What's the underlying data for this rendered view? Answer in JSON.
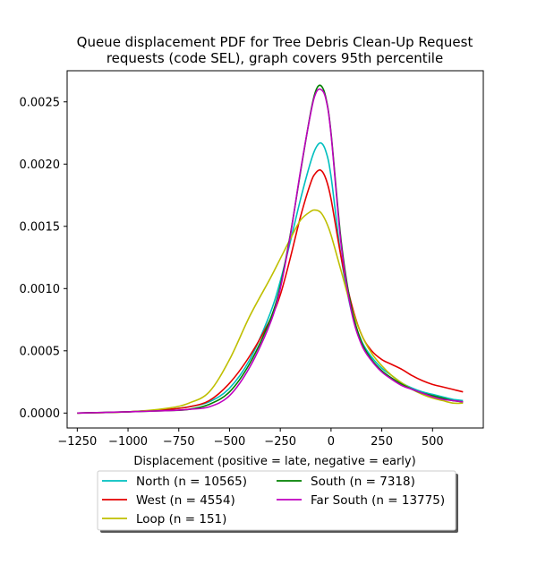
{
  "chart_data": {
    "type": "line",
    "title": "Queue displacement PDF for Tree Debris Clean-Up Request requests (code SEL), graph covers 95th percentile",
    "title_lines": [
      "Queue displacement PDF for Tree Debris Clean-Up Request",
      "requests (code SEL), graph covers 95th percentile"
    ],
    "xlabel": "Displacement (positive = late, negative = early)",
    "ylabel": "",
    "xlim": [
      -1300,
      750
    ],
    "ylim": [
      -0.00012,
      0.00275
    ],
    "xticks": [
      -1250,
      -1000,
      -750,
      -500,
      -250,
      0,
      250,
      500
    ],
    "xtick_labels": [
      "−1250",
      "−1000",
      "−750",
      "−500",
      "−250",
      "0",
      "250",
      "500"
    ],
    "yticks": [
      0.0,
      0.0005,
      0.001,
      0.0015,
      0.002,
      0.0025
    ],
    "ytick_labels": [
      "0.0000",
      "0.0005",
      "0.0010",
      "0.0015",
      "0.0020",
      "0.0025"
    ],
    "grid": false,
    "legend_position": "bottom-center, below axes, 2 columns",
    "series": [
      {
        "name": "North (n = 10565)",
        "color": "#00bfbf",
        "x": [
          -1250,
          -1000,
          -800,
          -700,
          -600,
          -500,
          -400,
          -300,
          -250,
          -200,
          -150,
          -100,
          -75,
          -50,
          -25,
          0,
          50,
          100,
          150,
          200,
          250,
          300,
          350,
          400,
          450,
          500,
          550,
          600,
          650
        ],
        "y": [
          0.0,
          1e-05,
          3e-05,
          5e-05,
          9e-05,
          0.0002,
          0.00043,
          0.0008,
          0.00106,
          0.00138,
          0.00172,
          0.00202,
          0.00213,
          0.00217,
          0.0021,
          0.0019,
          0.00125,
          0.00082,
          0.00058,
          0.00045,
          0.00036,
          0.0003,
          0.00024,
          0.0002,
          0.00017,
          0.00015,
          0.00013,
          0.00011,
          0.0001
        ]
      },
      {
        "name": "West (n = 4554)",
        "color": "#e50000",
        "x": [
          -1250,
          -1000,
          -800,
          -700,
          -600,
          -500,
          -400,
          -300,
          -250,
          -200,
          -150,
          -100,
          -75,
          -50,
          -25,
          0,
          50,
          100,
          150,
          200,
          250,
          300,
          350,
          400,
          450,
          500,
          550,
          600,
          650
        ],
        "y": [
          0.0,
          1e-05,
          3e-05,
          5e-05,
          0.0001,
          0.00024,
          0.00046,
          0.00075,
          0.00095,
          0.00125,
          0.00158,
          0.00185,
          0.00193,
          0.00195,
          0.00188,
          0.00172,
          0.00125,
          0.00088,
          0.00063,
          0.0005,
          0.00043,
          0.00039,
          0.00035,
          0.0003,
          0.00026,
          0.00023,
          0.00021,
          0.00019,
          0.00017
        ]
      },
      {
        "name": "Loop (n = 151)",
        "color": "#bfbf00",
        "x": [
          -1250,
          -1000,
          -800,
          -700,
          -600,
          -500,
          -400,
          -300,
          -250,
          -200,
          -150,
          -100,
          -75,
          -50,
          -25,
          0,
          50,
          100,
          150,
          200,
          250,
          300,
          350,
          400,
          450,
          500,
          550,
          600,
          650
        ],
        "y": [
          0.0,
          1e-05,
          4e-05,
          8e-05,
          0.00017,
          0.00043,
          0.00078,
          0.00108,
          0.00124,
          0.0014,
          0.00155,
          0.00162,
          0.00163,
          0.00161,
          0.00154,
          0.00143,
          0.00114,
          0.00085,
          0.00063,
          0.00048,
          0.00038,
          0.0003,
          0.00024,
          0.00019,
          0.00015,
          0.00012,
          0.0001,
          8e-05,
          8e-05
        ]
      },
      {
        "name": "South (n = 7318)",
        "color": "#008000",
        "x": [
          -1250,
          -1000,
          -800,
          -700,
          -600,
          -500,
          -400,
          -300,
          -250,
          -200,
          -150,
          -100,
          -75,
          -50,
          -25,
          0,
          50,
          100,
          150,
          200,
          250,
          300,
          350,
          400,
          450,
          500,
          550,
          600,
          650
        ],
        "y": [
          0.0,
          1e-05,
          2e-05,
          3e-05,
          7e-05,
          0.00017,
          0.0004,
          0.00075,
          0.00102,
          0.00144,
          0.00194,
          0.00242,
          0.00259,
          0.00263,
          0.00253,
          0.00225,
          0.00138,
          0.00085,
          0.00057,
          0.00043,
          0.00034,
          0.00028,
          0.00023,
          0.00019,
          0.00016,
          0.00014,
          0.00012,
          0.0001,
          9e-05
        ]
      },
      {
        "name": "Far South (n = 13775)",
        "color": "#bf00bf",
        "x": [
          -1250,
          -1000,
          -800,
          -700,
          -600,
          -500,
          -400,
          -300,
          -250,
          -200,
          -150,
          -100,
          -75,
          -50,
          -25,
          0,
          50,
          100,
          150,
          200,
          250,
          300,
          350,
          400,
          450,
          500,
          550,
          600,
          650
        ],
        "y": [
          0.0,
          1e-05,
          2e-05,
          3e-05,
          5e-05,
          0.00014,
          0.00037,
          0.00072,
          0.001,
          0.00143,
          0.00195,
          0.00241,
          0.00257,
          0.0026,
          0.00252,
          0.00224,
          0.00135,
          0.00082,
          0.00055,
          0.00042,
          0.00033,
          0.00027,
          0.00022,
          0.00019,
          0.00016,
          0.00013,
          0.00011,
          0.0001,
          9e-05
        ]
      }
    ],
    "legend_order": [
      "North (n = 10565)",
      "West (n = 4554)",
      "Loop (n = 151)",
      "South (n = 7318)",
      "Far South (n = 13775)"
    ]
  }
}
